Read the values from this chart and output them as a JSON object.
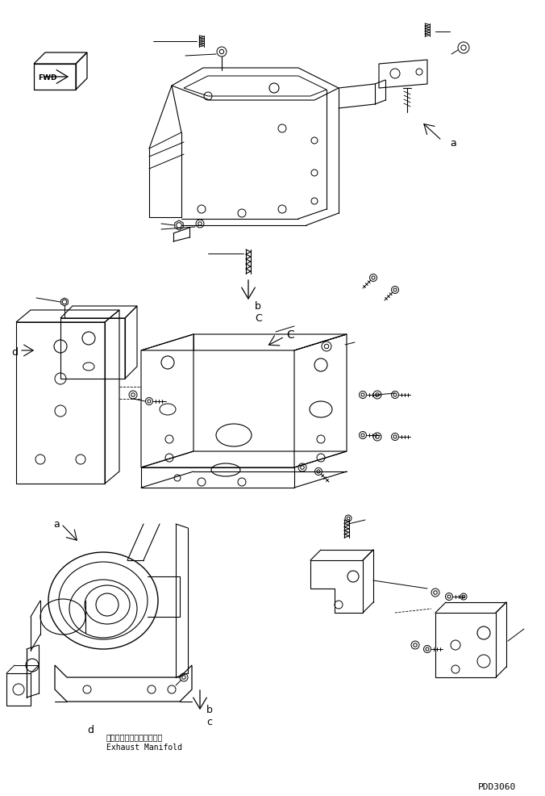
{
  "fig_width": 6.76,
  "fig_height": 9.87,
  "dpi": 100,
  "bg_color": "#ffffff",
  "line_color": "#000000",
  "lw": 0.7,
  "title_code": "PDD3060",
  "exhaust_jp": "エキゾーストマニホールド",
  "exhaust_en": "Exhaust Manifold",
  "font_size_label": 9,
  "font_size_small": 7,
  "font_size_code": 8
}
